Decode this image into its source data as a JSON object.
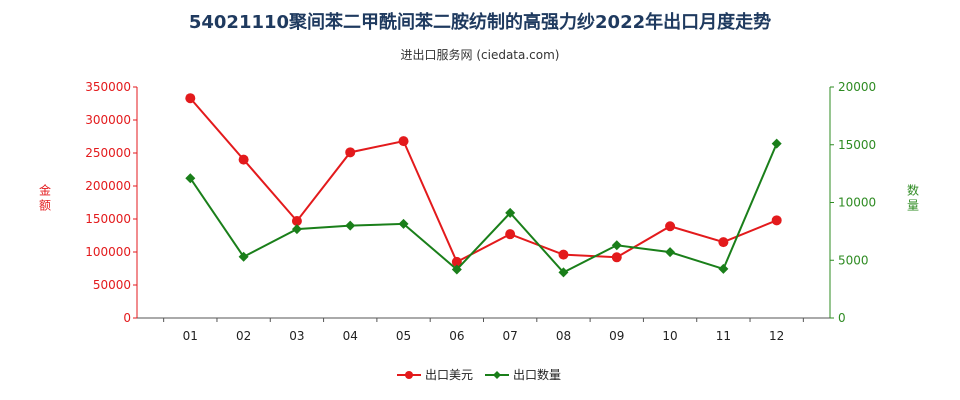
{
  "title": "54021110聚间苯二甲酰间苯二胺纺制的高强力纱2022年出口月度走势",
  "subtitle": "进出口服务网 (ciedata.com)",
  "chart_data": {
    "type": "line",
    "categories": [
      "01",
      "02",
      "03",
      "04",
      "05",
      "06",
      "07",
      "08",
      "09",
      "10",
      "11",
      "12"
    ],
    "y_left": {
      "label": "金额",
      "range": [
        0,
        350000
      ],
      "ticks": [
        0,
        50000,
        100000,
        150000,
        200000,
        250000,
        300000,
        350000
      ],
      "color": "#e31a1c"
    },
    "y_right": {
      "label": "数量",
      "range": [
        0,
        20000
      ],
      "ticks": [
        0,
        5000,
        10000,
        15000,
        20000
      ],
      "color": "#2e8b22"
    },
    "series": [
      {
        "name": "出口美元",
        "axis": "left",
        "color": "#e31a1c",
        "marker": "circle",
        "values": [
          333000,
          240000,
          147000,
          251000,
          268000,
          85000,
          127000,
          96000,
          92000,
          139000,
          115000,
          148000
        ]
      },
      {
        "name": "出口数量",
        "axis": "right",
        "color": "#1a7f1a",
        "marker": "diamond",
        "values": [
          12100,
          5300,
          7700,
          8000,
          8150,
          4200,
          9100,
          3950,
          6300,
          5700,
          4250,
          15100
        ]
      }
    ],
    "legend_position": "bottom-center",
    "grid": false
  }
}
